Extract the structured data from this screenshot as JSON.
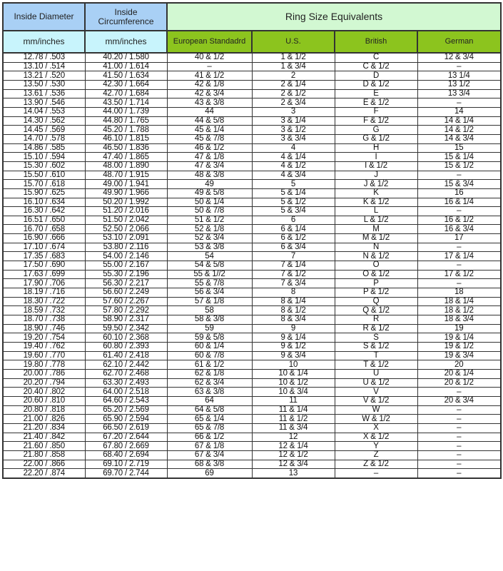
{
  "header": {
    "inside_diameter": "Inside Diameter",
    "inside_circumference": "Inside Circumference",
    "ring_size_equivalents": "Ring Size Equivalents",
    "diameter_unit": "mm/inches",
    "circumference_unit": "mm/inches",
    "european": "European Standadrd",
    "us": "U.S.",
    "british": "British",
    "german": "German"
  },
  "colors": {
    "header_blue": "#a9d0f5",
    "header_cyan": "#c8f4fc",
    "header_light_green": "#d2f8d2",
    "header_green": "#8cc41e"
  },
  "rows": [
    [
      "12.78 / .503",
      "40.20 / 1.580",
      "40 & 1/2",
      "1 & 1/2",
      "C",
      "12 & 3/4"
    ],
    [
      "13.10 / .514",
      "41.00 / 1.614",
      "–",
      "1 & 3/4",
      "C & 1/2",
      "–"
    ],
    [
      "13.21 / .520",
      "41.50 / 1.634",
      "41 & 1/2",
      "2",
      "D",
      "13 1/4"
    ],
    [
      "13.50 / .530",
      "42.30 / 1.664",
      "42 & 1/8",
      "2 & 1/4",
      "D & 1/2",
      "13 1/2"
    ],
    [
      "13.61 / .536",
      "42.70 / 1.684",
      "42 & 3/4",
      "2 & 1/2",
      "E",
      "13 3/4"
    ],
    [
      "13.90 / .546",
      "43.50 / 1.714",
      "43 & 3/8",
      "2 & 3/4",
      "E & 1/2",
      "–"
    ],
    [
      "14.04 / .553",
      "44.00 / 1.739",
      "44",
      "3",
      "F",
      "14"
    ],
    [
      "14.30 / .562",
      "44.80 / 1.765",
      "44 & 5/8",
      "3 & 1/4",
      "F & 1/2",
      "14 & 1/4"
    ],
    [
      "14.45 / .569",
      "45.20 / 1.788",
      "45 & 1/4",
      "3 & 1/2",
      "G",
      "14 & 1/2"
    ],
    [
      "14.70 / .578",
      "46.10 / 1.815",
      "45 & 7/8",
      "3 & 3/4",
      "G & 1/2",
      "14 & 3/4"
    ],
    [
      "14.86 / .585",
      "46.50 / 1.836",
      "46 & 1/2",
      "4",
      "H",
      "15"
    ],
    [
      "15.10 / .594",
      "47.40 / 1.865",
      "47 & 1/8",
      "4 & 1/4",
      "I",
      "15 & 1/4"
    ],
    [
      "15.30 / .602",
      "48.00 / 1.890",
      "47 & 3/4",
      "4 & 1/2",
      "I & 1/2",
      "15 & 1/2"
    ],
    [
      "15.50 / .610",
      "48.70 / 1.915",
      "48 & 3/8",
      "4 & 3/4",
      "J",
      "–"
    ],
    [
      "15.70 / .618",
      "49.00 / 1.941",
      "49",
      "5",
      "J & 1/2",
      "15 & 3/4"
    ],
    [
      "15.90 / .625",
      "49.90 / 1.966",
      "49 & 5/8",
      "5 & 1/4",
      "K",
      "16"
    ],
    [
      "16.10 / .634",
      "50.20 / 1.992",
      "50 & 1/4",
      "5 & 1/2",
      "K & 1/2",
      "16 & 1/4"
    ],
    [
      "16.30 / .642",
      "51.20 / 2.016",
      "50 & 7/8",
      "5 & 3/4",
      "L",
      "–"
    ],
    [
      "16.51 / .650",
      "51.50 / 2.042",
      "51 & 1/2",
      "6",
      "L & 1/2",
      "16 & 1/2"
    ],
    [
      "16.70 / .658",
      "52.50 / 2.066",
      "52 & 1/8",
      "6 & 1/4",
      "M",
      "16 & 3/4"
    ],
    [
      "16.90 / .666",
      "53.10 / 2.091",
      "52 & 3/4",
      "6 & 1/2",
      "M & 1/2",
      "17"
    ],
    [
      "17.10 / .674",
      "53.80 / 2.116",
      "53 & 3/8",
      "6 & 3/4",
      "N",
      "–"
    ],
    [
      "17.35 / .683",
      "54.00 / 2.146",
      "54",
      "7",
      "N & 1/2",
      "17 & 1/4"
    ],
    [
      "17.50 / .690",
      "55.00 / 2.167",
      "54 & 5/8",
      "7 & 1/4",
      "O",
      "–"
    ],
    [
      "17.63 / .699",
      "55.30 / 2.196",
      "55 & 1//2",
      "7 & 1/2",
      "O & 1/2",
      "17 & 1/2"
    ],
    [
      "17.90 / .706",
      "56.30 / 2.217",
      "55 & 7/8",
      "7 & 3/4",
      "P",
      "–"
    ],
    [
      "18.19 / .716",
      "56.60 / 2.249",
      "56 & 3/4",
      "8",
      "P & 1/2",
      "18"
    ],
    [
      "18.30 / .722",
      "57.60 / 2.267",
      "57 & 1/8",
      "8 & 1/4",
      "Q",
      "18 & 1/4"
    ],
    [
      "18.59 / .732",
      "57.80 / 2.292",
      "58",
      "8 & 1/2",
      "Q & 1/2",
      "18 & 1/2"
    ],
    [
      "18.70 / .738",
      "58.90 / 2.317",
      "58 & 3/8",
      "8 & 3/4",
      "R",
      "18 & 3/4"
    ],
    [
      "18.90 / .746",
      "59.50 / 2.342",
      "59",
      "9",
      "R & 1/2",
      "19"
    ],
    [
      "19.20 / .754",
      "60.10 / 2.368",
      "59 & 5/8",
      "9 & 1/4",
      "S",
      "19 & 1/4"
    ],
    [
      "19.40 / .762",
      "60.80 / 2.393",
      "60 & 1/4",
      "9 & 1/2",
      "S & 1/2",
      "19 & 1/2"
    ],
    [
      "19.60 / .770",
      "61.40 / 2.418",
      "60 & 7/8",
      "9 & 3/4",
      "T",
      "19 & 3/4"
    ],
    [
      "19.80 / .778",
      "62.10 / 2.442",
      "61 & 1/2",
      "10",
      "T & 1/2",
      "20"
    ],
    [
      "20.00 / .786",
      "62.70 / 2.468",
      "62 & 1/8",
      "10 & 1/4",
      "U",
      "20 & 1/4"
    ],
    [
      "20.20 / .794",
      "63.30 / 2.493",
      "62 & 3/4",
      "10 & 1/2",
      "U & 1/2",
      "20 & 1/2"
    ],
    [
      "20.40 / .802",
      "64.00 / 2.518",
      "63 & 3/8",
      "10 & 3/4",
      "V",
      "–"
    ],
    [
      "20.60 / .810",
      "64.60 / 2.543",
      "64",
      "11",
      "V & 1/2",
      "20 & 3/4"
    ],
    [
      "20.80 / .818",
      "65.20 / 2.569",
      "64 & 5/8",
      "11 & 1/4",
      "W",
      "–"
    ],
    [
      "21.00 / .826",
      "65.90 / 2.594",
      "65 & 1/4",
      "11 & 1/2",
      "W & 1/2",
      "–"
    ],
    [
      "21.20 / .834",
      "66.50 / 2.619",
      "65 & 7/8",
      "11 & 3/4",
      "X",
      "–"
    ],
    [
      "21.40 / .842",
      "67.20 / 2.644",
      "66 & 1/2",
      "12",
      "X & 1/2",
      "–"
    ],
    [
      "21.60 / .850",
      "67.80 / 2.669",
      "67 & 1/8",
      "12 & 1/4",
      "Y",
      "–"
    ],
    [
      "21.80 / .858",
      "68.40 / 2.694",
      "67 & 3/4",
      "12 & 1/2",
      "Z",
      "–"
    ],
    [
      "22.00 / .866",
      "69.10 / 2.719",
      "68 & 3/8",
      "12 & 3/4",
      "Z & 1/2",
      "–"
    ],
    [
      "22.20 / .874",
      "69.70 / 2.744",
      "69",
      "13",
      "–",
      "–"
    ]
  ]
}
